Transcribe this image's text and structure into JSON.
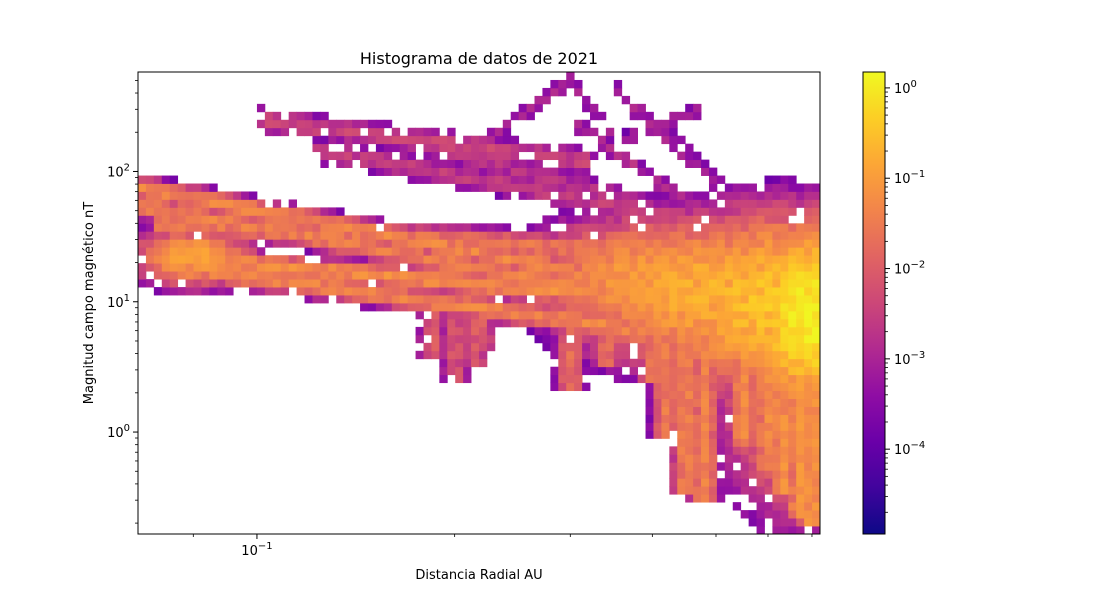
{
  "chart_data": {
    "type": "heatmap",
    "title": "Histograma de datos de 2021",
    "xlabel": "Distancia Radial AU",
    "ylabel": "Magnitud campo magnético nT",
    "x_scale": "log",
    "y_scale": "log",
    "xlim": [
      0.0659,
      0.72
    ],
    "ylim": [
      0.165,
      580
    ],
    "x_ticks": [
      {
        "base": "10",
        "exp": "−1",
        "value": 0.1
      }
    ],
    "x_minor_ticks": [
      0.08,
      0.2,
      0.3,
      0.4,
      0.5,
      0.6,
      0.7
    ],
    "y_ticks": [
      {
        "base": "10",
        "exp": "0",
        "value": 1
      },
      {
        "base": "10",
        "exp": "1",
        "value": 10
      },
      {
        "base": "10",
        "exp": "2",
        "value": 100
      }
    ],
    "grid": false,
    "colormap": "plasma",
    "colorbar": {
      "scale": "log",
      "range": [
        1.15e-05,
        1.5
      ],
      "ticks": [
        {
          "base": "10",
          "exp": "0",
          "value": 1
        },
        {
          "base": "10",
          "exp": "−1",
          "value": 0.1
        },
        {
          "base": "10",
          "exp": "−2",
          "value": 0.01
        },
        {
          "base": "10",
          "exp": "−3",
          "value": 0.001
        },
        {
          "base": "10",
          "exp": "−4",
          "value": 0.0001
        }
      ]
    },
    "density_bands": [
      {
        "x": [
          0.066,
          0.72
        ],
        "y": [
          75,
          7.5
        ],
        "width": 0.05,
        "level": 0.05
      },
      {
        "x": [
          0.066,
          0.72
        ],
        "y": [
          55,
          6.0
        ],
        "width": 0.05,
        "level": 0.04
      },
      {
        "x": [
          0.075,
          0.72
        ],
        "y": [
          22,
          8.0
        ],
        "width": 0.05,
        "level": 0.06
      },
      {
        "x": [
          0.078,
          0.72
        ],
        "y": [
          18,
          4.0
        ],
        "width": 0.05,
        "level": 0.05
      },
      {
        "x": [
          0.07,
          0.72
        ],
        "y": [
          40,
          20
        ],
        "width": 0.06,
        "level": 0.03
      },
      {
        "x": [
          0.1,
          0.32
        ],
        "y": [
          250,
          120
        ],
        "width": 0.06,
        "level": 0.004
      },
      {
        "x": [
          0.12,
          0.5
        ],
        "y": [
          150,
          40
        ],
        "width": 0.06,
        "level": 0.003
      },
      {
        "x": [
          0.17,
          0.48
        ],
        "y": [
          180,
          40
        ],
        "width": 0.07,
        "level": 0.002
      },
      {
        "x": [
          0.2,
          0.3
        ],
        "y": [
          120,
          500
        ],
        "width": 0.05,
        "level": 0.001
      },
      {
        "x": [
          0.3,
          0.35
        ],
        "y": [
          500,
          180
        ],
        "width": 0.05,
        "level": 0.0008
      },
      {
        "x": [
          0.3,
          0.5
        ],
        "y": [
          250,
          40
        ],
        "width": 0.05,
        "level": 0.0015
      },
      {
        "x": [
          0.35,
          0.6
        ],
        "y": [
          450,
          40
        ],
        "width": 0.06,
        "level": 0.0006
      },
      {
        "x": [
          0.37,
          0.6
        ],
        "y": [
          320,
          35
        ],
        "width": 0.05,
        "level": 0.001
      },
      {
        "x": [
          0.3,
          0.47
        ],
        "y": [
          120,
          300
        ],
        "width": 0.05,
        "level": 0.0008
      }
    ],
    "density_blobs": [
      {
        "x": 0.7,
        "y": 8,
        "sx": 0.05,
        "sy": 0.35,
        "level": 1.2
      },
      {
        "x": 0.62,
        "y": 10,
        "sx": 0.1,
        "sy": 0.35,
        "level": 0.35
      },
      {
        "x": 0.5,
        "y": 12,
        "sx": 0.12,
        "sy": 0.3,
        "level": 0.2
      },
      {
        "x": 0.4,
        "y": 15,
        "sx": 0.1,
        "sy": 0.25,
        "level": 0.12
      },
      {
        "x": 0.66,
        "y": 2.0,
        "sx": 0.06,
        "sy": 0.5,
        "level": 0.06
      },
      {
        "x": 0.08,
        "y": 22,
        "sx": 0.05,
        "sy": 0.12,
        "level": 0.12
      }
    ],
    "fingers": [
      {
        "x": 0.185,
        "y_top": 12,
        "y_bot": 3.5,
        "level": 0.01
      },
      {
        "x": 0.2,
        "y_top": 12,
        "y_bot": 2.5,
        "level": 0.008
      },
      {
        "x": 0.215,
        "y_top": 14,
        "y_bot": 3.2,
        "level": 0.01
      },
      {
        "x": 0.22,
        "y_top": 12,
        "y_bot": 4.0,
        "level": 0.01
      },
      {
        "x": 0.3,
        "y_top": 8,
        "y_bot": 2.0,
        "level": 0.02
      },
      {
        "x": 0.34,
        "y_top": 8,
        "y_bot": 3.0,
        "level": 0.02
      },
      {
        "x": 0.4,
        "y_top": 6,
        "y_bot": 2.5,
        "level": 0.03
      },
      {
        "x": 0.42,
        "y_top": 7,
        "y_bot": 0.9,
        "level": 0.03
      },
      {
        "x": 0.45,
        "y_top": 6,
        "y_bot": 0.35,
        "level": 0.04
      },
      {
        "x": 0.48,
        "y_top": 5,
        "y_bot": 0.28,
        "level": 0.04
      },
      {
        "x": 0.55,
        "y_top": 5,
        "y_bot": 0.8,
        "level": 0.05
      },
      {
        "x": 0.6,
        "y_top": 5,
        "y_bot": 0.5,
        "level": 0.06
      },
      {
        "x": 0.63,
        "y_top": 4,
        "y_bot": 0.35,
        "level": 0.07
      },
      {
        "x": 0.67,
        "y_top": 4,
        "y_bot": 0.22,
        "level": 0.07
      },
      {
        "x": 0.7,
        "y_top": 4,
        "y_bot": 0.19,
        "level": 0.08
      }
    ]
  }
}
